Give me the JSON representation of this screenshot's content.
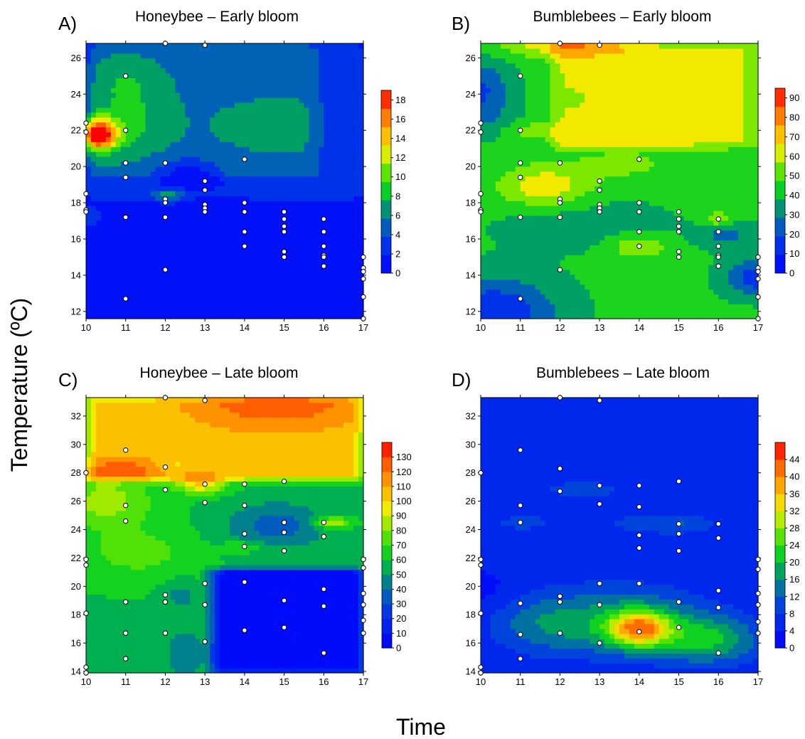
{
  "figure": {
    "ylabel": "Temperature (ºC)",
    "xlabel": "Time"
  },
  "chart_data": [
    {
      "type": "contour",
      "letter": "A)",
      "title": "Honeybee – Early bloom",
      "x_ticks": [
        10,
        11,
        12,
        13,
        14,
        15,
        16,
        17
      ],
      "xlim": [
        10,
        17
      ],
      "y_ticks": [
        12,
        14,
        16,
        18,
        20,
        22,
        24,
        26
      ],
      "ylim": [
        11.6,
        26.8
      ],
      "colorbar": {
        "min": 0,
        "max": 19,
        "ticks": [
          0,
          2,
          4,
          6,
          8,
          10,
          12,
          14,
          16,
          18
        ]
      },
      "points": [
        [
          10,
          22.4
        ],
        [
          10,
          21.9
        ],
        [
          10,
          18.5
        ],
        [
          10,
          17.6
        ],
        [
          10,
          17.5
        ],
        [
          11,
          25
        ],
        [
          11,
          22
        ],
        [
          11,
          20.2
        ],
        [
          11,
          19.4
        ],
        [
          11,
          17.2
        ],
        [
          11,
          12.7
        ],
        [
          12,
          26.8
        ],
        [
          12,
          20.2
        ],
        [
          12,
          18.2
        ],
        [
          12,
          18
        ],
        [
          12,
          17.2
        ],
        [
          12,
          14.3
        ],
        [
          13,
          26.7
        ],
        [
          13,
          19.2
        ],
        [
          13,
          18.7
        ],
        [
          13,
          17.9
        ],
        [
          13,
          17.7
        ],
        [
          13,
          17.5
        ],
        [
          14,
          20.4
        ],
        [
          14,
          18
        ],
        [
          14,
          17.5
        ],
        [
          14,
          16.4
        ],
        [
          14,
          15.6
        ],
        [
          15,
          17.5
        ],
        [
          15,
          17.1
        ],
        [
          15,
          16.7
        ],
        [
          15,
          16.4
        ],
        [
          15,
          15.3
        ],
        [
          15,
          15
        ],
        [
          16,
          17.1
        ],
        [
          16,
          16.4
        ],
        [
          16,
          15.6
        ],
        [
          16,
          15.1
        ],
        [
          16,
          15
        ],
        [
          16,
          14.5
        ],
        [
          17,
          15
        ],
        [
          17,
          14.4
        ],
        [
          17,
          14.2
        ],
        [
          17,
          13.8
        ],
        [
          17,
          12.8
        ],
        [
          17,
          11.6
        ]
      ],
      "field": {
        "base": 0.5,
        "zones": [
          {
            "x0": 10,
            "x1": 17,
            "y0": 18.2,
            "y1": 26.8,
            "k": 2.5
          },
          {
            "x0": 10,
            "x1": 15.8,
            "y0": 19.4,
            "y1": 26.8,
            "k": 2.5
          }
        ],
        "bumps": [
          {
            "x": 10.3,
            "y": 21.8,
            "a": 15,
            "sx": 0.35,
            "sy": 0.6
          },
          {
            "x": 11.1,
            "y": 22.6,
            "a": 3,
            "sx": 0.7,
            "sy": 1.3
          },
          {
            "x": 11,
            "y": 24.8,
            "a": 2,
            "sx": 0.6,
            "sy": 0.8
          },
          {
            "x": 14.8,
            "y": 22.3,
            "a": 1.5,
            "sx": 1.1,
            "sy": 1
          },
          {
            "x": 12.1,
            "y": 18.4,
            "a": 4.5,
            "sx": 0.3,
            "sy": 0.3
          },
          {
            "x": 10.05,
            "y": 17.3,
            "a": 3,
            "sx": 0.3,
            "sy": 0.5
          },
          {
            "x": 12.6,
            "y": 19.6,
            "a": -4.5,
            "sx": 0.6,
            "sy": 0.6
          },
          {
            "x": 14.1,
            "y": 15.6,
            "a": 1.2,
            "sx": 0.5,
            "sy": 0.35
          }
        ]
      }
    },
    {
      "type": "contour",
      "letter": "B)",
      "title": "Bumblebees – Early bloom",
      "x_ticks": [
        10,
        11,
        12,
        13,
        14,
        15,
        16,
        17
      ],
      "xlim": [
        10,
        17
      ],
      "y_ticks": [
        12,
        14,
        16,
        18,
        20,
        22,
        24,
        26
      ],
      "ylim": [
        11.6,
        26.8
      ],
      "colorbar": {
        "min": 0,
        "max": 95,
        "ticks": [
          0,
          10,
          20,
          30,
          40,
          50,
          60,
          70,
          80,
          90
        ]
      },
      "points": [
        [
          10,
          22.4
        ],
        [
          10,
          21.9
        ],
        [
          10,
          18.5
        ],
        [
          10,
          17.6
        ],
        [
          10,
          17.5
        ],
        [
          11,
          25
        ],
        [
          11,
          22
        ],
        [
          11,
          20.2
        ],
        [
          11,
          19.4
        ],
        [
          11,
          17.2
        ],
        [
          11,
          12.7
        ],
        [
          12,
          26.8
        ],
        [
          12,
          20.2
        ],
        [
          12,
          18.2
        ],
        [
          12,
          18
        ],
        [
          12,
          17.2
        ],
        [
          12,
          14.3
        ],
        [
          13,
          26.7
        ],
        [
          13,
          19.2
        ],
        [
          13,
          18.7
        ],
        [
          13,
          17.9
        ],
        [
          13,
          17.7
        ],
        [
          13,
          17.5
        ],
        [
          14,
          20.4
        ],
        [
          14,
          18
        ],
        [
          14,
          17.5
        ],
        [
          14,
          16.4
        ],
        [
          14,
          15.6
        ],
        [
          15,
          17.5
        ],
        [
          15,
          17.1
        ],
        [
          15,
          16.7
        ],
        [
          15,
          16.4
        ],
        [
          15,
          15.3
        ],
        [
          15,
          15
        ],
        [
          16,
          17.1
        ],
        [
          16,
          16.4
        ],
        [
          16,
          15.6
        ],
        [
          16,
          15.1
        ],
        [
          16,
          15
        ],
        [
          16,
          14.5
        ],
        [
          17,
          15
        ],
        [
          17,
          14.4
        ],
        [
          17,
          14.2
        ],
        [
          17,
          13.8
        ],
        [
          17,
          12.8
        ],
        [
          17,
          11.6
        ]
      ],
      "field": {
        "base": 42,
        "zones": [
          {
            "x0": 11.8,
            "x1": 17,
            "y0": 21,
            "y1": 26.8,
            "k": 18
          }
        ],
        "bumps": [
          {
            "x": 12.2,
            "y": 26.9,
            "a": 28,
            "sx": 1.2,
            "sy": 0.6
          },
          {
            "x": 10,
            "y": 24.5,
            "a": -22,
            "sx": 0.5,
            "sy": 1
          },
          {
            "x": 10,
            "y": 22.8,
            "a": -12,
            "sx": 0.6,
            "sy": 0.8
          },
          {
            "x": 11.6,
            "y": 18.9,
            "a": 25,
            "sx": 0.8,
            "sy": 0.8
          },
          {
            "x": 11.4,
            "y": 22,
            "a": 15,
            "sx": 0.5,
            "sy": 0.35
          },
          {
            "x": 10.3,
            "y": 12,
            "a": -32,
            "sx": 1.1,
            "sy": 1.3
          },
          {
            "x": 17,
            "y": 13.9,
            "a": -30,
            "sx": 0.55,
            "sy": 0.7
          },
          {
            "x": 14,
            "y": 15.6,
            "a": 18,
            "sx": 0.55,
            "sy": 0.5
          },
          {
            "x": 16.2,
            "y": 16.2,
            "a": -15,
            "sx": 0.5,
            "sy": 0.5
          },
          {
            "x": 16,
            "y": 17.1,
            "a": 18,
            "sx": 0.25,
            "sy": 0.3
          },
          {
            "x": 13.6,
            "y": 20.2,
            "a": 10,
            "sx": 1.1,
            "sy": 0.8
          },
          {
            "x": 12.6,
            "y": 16.8,
            "a": -8,
            "sx": 1.5,
            "sy": 1
          }
        ]
      }
    },
    {
      "type": "contour",
      "letter": "C)",
      "title": "Honeybee – Late bloom",
      "x_ticks": [
        10,
        11,
        12,
        13,
        14,
        15,
        16,
        17
      ],
      "xlim": [
        10,
        17
      ],
      "y_ticks": [
        14,
        16,
        18,
        20,
        22,
        24,
        26,
        28,
        30,
        32
      ],
      "ylim": [
        13.9,
        33.3
      ],
      "colorbar": {
        "min": 0,
        "max": 140,
        "ticks": [
          0,
          10,
          20,
          30,
          40,
          50,
          60,
          70,
          80,
          90,
          100,
          110,
          120,
          130
        ]
      },
      "points": [
        [
          10,
          28
        ],
        [
          10,
          21.9
        ],
        [
          10,
          21.5
        ],
        [
          10,
          18.1
        ],
        [
          10,
          14.3
        ],
        [
          10,
          13.9
        ],
        [
          11,
          29.6
        ],
        [
          11,
          25.7
        ],
        [
          11,
          24.6
        ],
        [
          11,
          18.9
        ],
        [
          11,
          16.7
        ],
        [
          11,
          14.9
        ],
        [
          12,
          33.3
        ],
        [
          12,
          28.4
        ],
        [
          12,
          26.8
        ],
        [
          12,
          19.4
        ],
        [
          12,
          18.9
        ],
        [
          12,
          16.7
        ],
        [
          13,
          33.1
        ],
        [
          13,
          27.2
        ],
        [
          13,
          25.9
        ],
        [
          13,
          20.2
        ],
        [
          13,
          18.7
        ],
        [
          13,
          16.1
        ],
        [
          14,
          27.2
        ],
        [
          14,
          25.7
        ],
        [
          14,
          23.7
        ],
        [
          14,
          22.8
        ],
        [
          14,
          20.3
        ],
        [
          14,
          16.9
        ],
        [
          15,
          27.4
        ],
        [
          15,
          24.5
        ],
        [
          15,
          23.8
        ],
        [
          15,
          22.5
        ],
        [
          15,
          19
        ],
        [
          15,
          17.1
        ],
        [
          16,
          24.5
        ],
        [
          16,
          23.5
        ],
        [
          16,
          19.8
        ],
        [
          16,
          18.6
        ],
        [
          16,
          15.3
        ],
        [
          17,
          21.9
        ],
        [
          17,
          21.3
        ],
        [
          17,
          19.5
        ],
        [
          17,
          18.7
        ],
        [
          17,
          17.6
        ],
        [
          17,
          16.7
        ]
      ],
      "field": {
        "base": 60,
        "zones": [
          {
            "x0": 10,
            "x1": 17,
            "y0": 27.5,
            "y1": 33.3,
            "k": 42
          },
          {
            "x0": 13.2,
            "x1": 17,
            "y0": 13.9,
            "y1": 21.2,
            "k": -58
          }
        ],
        "bumps": [
          {
            "x": 14.8,
            "y": 33.3,
            "a": 28,
            "sx": 1.6,
            "sy": 1.6
          },
          {
            "x": 12.9,
            "y": 27.2,
            "a": 40,
            "sx": 0.45,
            "sy": 0.45
          },
          {
            "x": 16.2,
            "y": 24.5,
            "a": 35,
            "sx": 0.3,
            "sy": 0.3
          },
          {
            "x": 11,
            "y": 28.3,
            "a": 20,
            "sx": 0.8,
            "sy": 0.6
          },
          {
            "x": 10.5,
            "y": 26,
            "a": 25,
            "sx": 0.8,
            "sy": 1.3
          },
          {
            "x": 14.8,
            "y": 24.3,
            "a": -25,
            "sx": 0.9,
            "sy": 1.2
          },
          {
            "x": 12.2,
            "y": 28.4,
            "a": -10,
            "sx": 0.3,
            "sy": 0.3
          },
          {
            "x": 12.5,
            "y": 15.3,
            "a": -20,
            "sx": 0.35,
            "sy": 1.2
          },
          {
            "x": 12.4,
            "y": 19.4,
            "a": -15,
            "sx": 0.3,
            "sy": 0.7
          },
          {
            "x": 10.7,
            "y": 16.5,
            "a": -5,
            "sx": 0.8,
            "sy": 1.2
          },
          {
            "x": 14,
            "y": 22.8,
            "a": 15,
            "sx": 0.4,
            "sy": 0.3
          },
          {
            "x": 11.3,
            "y": 22.4,
            "a": 15,
            "sx": 0.9,
            "sy": 1.2
          }
        ]
      }
    },
    {
      "type": "contour",
      "letter": "D)",
      "title": "Bumblebees – Late bloom",
      "x_ticks": [
        10,
        11,
        12,
        13,
        14,
        15,
        16,
        17
      ],
      "xlim": [
        10,
        17
      ],
      "y_ticks": [
        14,
        16,
        18,
        20,
        22,
        24,
        26,
        28,
        30,
        32
      ],
      "ylim": [
        13.9,
        33.3
      ],
      "colorbar": {
        "min": 0,
        "max": 48,
        "ticks": [
          0,
          4,
          8,
          12,
          16,
          20,
          24,
          28,
          32,
          36,
          40,
          44
        ]
      },
      "points": [
        [
          10,
          28
        ],
        [
          10,
          21.9
        ],
        [
          10,
          21.5
        ],
        [
          10,
          18.1
        ],
        [
          10,
          14.3
        ],
        [
          10,
          13.9
        ],
        [
          11,
          29.6
        ],
        [
          11,
          25.7
        ],
        [
          11,
          24.5
        ],
        [
          11,
          18.8
        ],
        [
          11,
          16.6
        ],
        [
          11,
          14.9
        ],
        [
          12,
          33.3
        ],
        [
          12,
          28.3
        ],
        [
          12,
          26.7
        ],
        [
          12,
          19.3
        ],
        [
          12,
          18.9
        ],
        [
          12,
          16.7
        ],
        [
          13,
          33.1
        ],
        [
          13,
          27.1
        ],
        [
          13,
          25.8
        ],
        [
          13,
          20.2
        ],
        [
          13,
          18.7
        ],
        [
          13,
          16
        ],
        [
          14,
          27.1
        ],
        [
          14,
          25.6
        ],
        [
          14,
          23.6
        ],
        [
          14,
          22.7
        ],
        [
          14,
          20.2
        ],
        [
          14,
          16.8
        ],
        [
          15,
          27.4
        ],
        [
          15,
          24.4
        ],
        [
          15,
          23.7
        ],
        [
          15,
          22.5
        ],
        [
          15,
          18.9
        ],
        [
          15,
          17.1
        ],
        [
          16,
          24.4
        ],
        [
          16,
          23.4
        ],
        [
          16,
          19.7
        ],
        [
          16,
          18.5
        ],
        [
          16,
          15.3
        ],
        [
          17,
          21.9
        ],
        [
          17,
          21.2
        ],
        [
          17,
          19.5
        ],
        [
          17,
          18.7
        ],
        [
          17,
          17.5
        ],
        [
          17,
          16.7
        ]
      ],
      "field": {
        "base": 4,
        "zones": [],
        "bumps": [
          {
            "x": 14,
            "y": 17,
            "a": 26,
            "sx": 0.55,
            "sy": 0.9
          },
          {
            "x": 13.5,
            "y": 17.5,
            "a": 14,
            "sx": 1.6,
            "sy": 1.7
          },
          {
            "x": 15.8,
            "y": 16.2,
            "a": 14,
            "sx": 0.9,
            "sy": 1.2
          },
          {
            "x": 11.4,
            "y": 17.3,
            "a": 6,
            "sx": 0.9,
            "sy": 1.5
          },
          {
            "x": 13.6,
            "y": 24.5,
            "a": 4,
            "sx": 2.2,
            "sy": 2.2
          },
          {
            "x": 15.1,
            "y": 24.4,
            "a": 5,
            "sx": 0.5,
            "sy": 0.35
          },
          {
            "x": 11,
            "y": 24.5,
            "a": 5,
            "sx": 0.4,
            "sy": 0.3
          },
          {
            "x": 12.5,
            "y": 26.9,
            "a": 4,
            "sx": 0.7,
            "sy": 0.4
          },
          {
            "x": 13,
            "y": 25.8,
            "a": -3,
            "sx": 0.3,
            "sy": 0.25
          },
          {
            "x": 10.2,
            "y": 19.5,
            "a": -2,
            "sx": 0.5,
            "sy": 1
          }
        ]
      }
    }
  ]
}
